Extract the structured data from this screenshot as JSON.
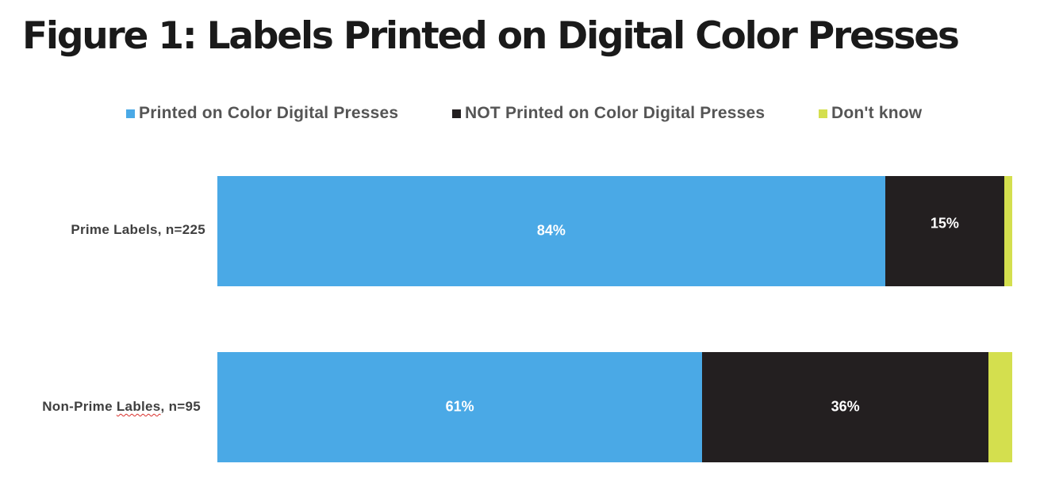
{
  "page_title": "Figure 1: Labels Printed on Digital Color Presses",
  "chart_data": {
    "type": "bar",
    "orientation": "horizontal",
    "stacked": true,
    "title": "Figure 1: Labels Printed on Digital Color Presses",
    "xlabel": "",
    "ylabel": "",
    "xlim": [
      0,
      100
    ],
    "grid": false,
    "legend_position": "top",
    "categories": [
      "Prime Labels, n=225",
      "Non-Prime Lables, n=95"
    ],
    "series": [
      {
        "name": "Printed on Color Digital Presses",
        "color": "#4aa9e6",
        "values": [
          84,
          61
        ],
        "labels": [
          "84%",
          "61%"
        ]
      },
      {
        "name": "NOT Printed on Color Digital Presses",
        "color": "#231f20",
        "values": [
          15,
          36
        ],
        "labels": [
          "15%",
          "36%"
        ]
      },
      {
        "name": "Don't know",
        "color": "#d4df4e",
        "values": [
          1,
          3
        ],
        "labels": [
          "",
          ""
        ]
      }
    ]
  }
}
